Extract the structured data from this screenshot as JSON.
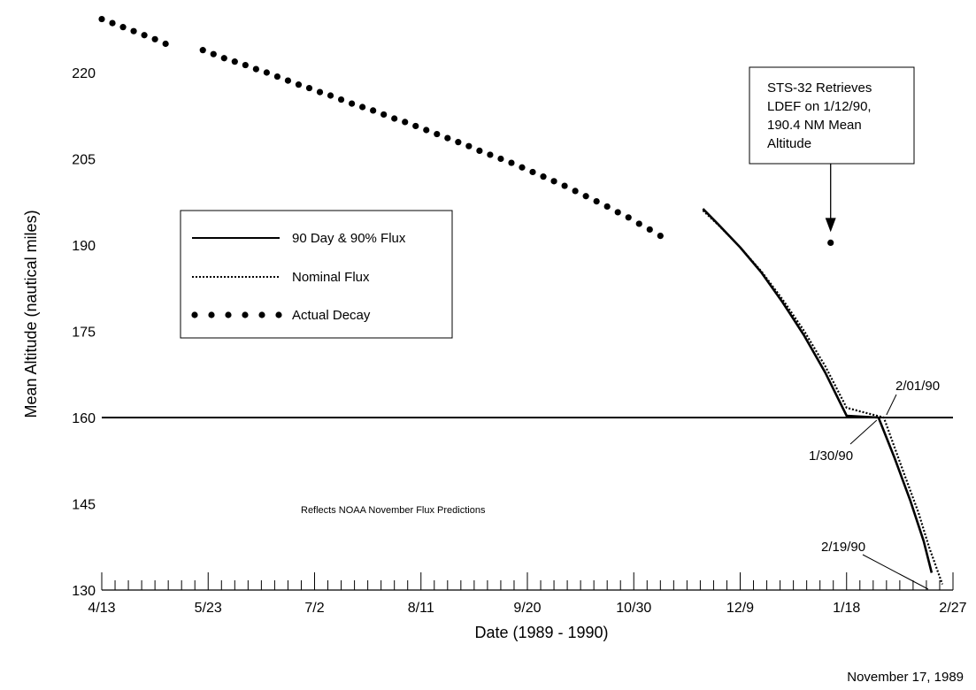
{
  "chart_data": {
    "type": "line",
    "title": "",
    "xlabel": "Date (1989 - 1990)",
    "ylabel": "Mean Altitude (nautical miles)",
    "footer": "November 17, 1989",
    "note": "Reflects NOAA November Flux Predictions",
    "xlim": [
      "1989-04-13",
      "1990-02-27"
    ],
    "ylim": [
      130,
      230
    ],
    "x_tick_labels": [
      "4/13",
      "5/23",
      "7/2",
      "8/11",
      "9/20",
      "10/30",
      "12/9",
      "1/18",
      "2/27"
    ],
    "x_tick_dates": [
      "1989-04-13",
      "1989-05-23",
      "1989-07-02",
      "1989-08-11",
      "1989-09-20",
      "1989-10-30",
      "1989-12-09",
      "1990-01-18",
      "1990-02-27"
    ],
    "minor_tick_step_days": 5,
    "y_ticks": [
      130,
      145,
      160,
      175,
      190,
      205,
      220
    ],
    "reference_line": {
      "y": 160
    },
    "legend": {
      "position": "left-center",
      "entries": [
        {
          "label": "90 Day & 90% Flux",
          "style": "solid"
        },
        {
          "label": "Nominal Flux",
          "style": "dotted-line"
        },
        {
          "label": "Actual Decay",
          "style": "dots"
        }
      ]
    },
    "series": [
      {
        "name": "Actual Decay",
        "style": "dots",
        "points": [
          [
            "1989-04-13",
            229.3
          ],
          [
            "1989-04-17",
            228.6
          ],
          [
            "1989-04-21",
            227.9
          ],
          [
            "1989-04-25",
            227.2
          ],
          [
            "1989-04-29",
            226.5
          ],
          [
            "1989-05-03",
            225.8
          ],
          [
            "1989-05-07",
            225.0
          ],
          [
            "1989-05-21",
            223.9
          ],
          [
            "1989-05-25",
            223.2
          ],
          [
            "1989-05-29",
            222.5
          ],
          [
            "1989-06-02",
            221.9
          ],
          [
            "1989-06-06",
            221.3
          ],
          [
            "1989-06-10",
            220.6
          ],
          [
            "1989-06-14",
            220.0
          ],
          [
            "1989-06-18",
            219.3
          ],
          [
            "1989-06-22",
            218.6
          ],
          [
            "1989-06-26",
            217.9
          ],
          [
            "1989-06-30",
            217.3
          ],
          [
            "1989-07-04",
            216.6
          ],
          [
            "1989-07-08",
            216.0
          ],
          [
            "1989-07-12",
            215.3
          ],
          [
            "1989-07-16",
            214.6
          ],
          [
            "1989-07-20",
            214.0
          ],
          [
            "1989-07-24",
            213.4
          ],
          [
            "1989-07-28",
            212.7
          ],
          [
            "1989-08-01",
            212.0
          ],
          [
            "1989-08-05",
            211.4
          ],
          [
            "1989-08-09",
            210.7
          ],
          [
            "1989-08-13",
            210.0
          ],
          [
            "1989-08-17",
            209.3
          ],
          [
            "1989-08-21",
            208.6
          ],
          [
            "1989-08-25",
            207.9
          ],
          [
            "1989-08-29",
            207.2
          ],
          [
            "1989-09-02",
            206.4
          ],
          [
            "1989-09-06",
            205.7
          ],
          [
            "1989-09-10",
            205.0
          ],
          [
            "1989-09-14",
            204.3
          ],
          [
            "1989-09-18",
            203.5
          ],
          [
            "1989-09-22",
            202.7
          ],
          [
            "1989-09-26",
            201.9
          ],
          [
            "1989-09-30",
            201.1
          ],
          [
            "1989-10-04",
            200.3
          ],
          [
            "1989-10-08",
            199.4
          ],
          [
            "1989-10-12",
            198.5
          ],
          [
            "1989-10-16",
            197.6
          ],
          [
            "1989-10-20",
            196.7
          ],
          [
            "1989-10-24",
            195.7
          ],
          [
            "1989-10-28",
            194.8
          ],
          [
            "1989-11-01",
            193.7
          ],
          [
            "1989-11-05",
            192.7
          ],
          [
            "1989-11-09",
            191.6
          ]
        ]
      },
      {
        "name": "90 Day & 90% Flux",
        "style": "solid",
        "points": [
          [
            "1989-11-25",
            196.3
          ],
          [
            "1989-12-01",
            193.5
          ],
          [
            "1989-12-09",
            189.6
          ],
          [
            "1989-12-17",
            185.2
          ],
          [
            "1989-12-25",
            180.0
          ],
          [
            "1990-01-02",
            174.3
          ],
          [
            "1990-01-10",
            167.8
          ],
          [
            "1990-01-18",
            160.3
          ],
          [
            "1990-01-30",
            160.0
          ],
          [
            "1990-02-05",
            153.0
          ],
          [
            "1990-02-11",
            145.5
          ],
          [
            "1990-02-16",
            138.5
          ],
          [
            "1990-02-19",
            133.0
          ]
        ]
      },
      {
        "name": "Nominal Flux",
        "style": "dotted-line",
        "points": [
          [
            "1989-11-25",
            196.0
          ],
          [
            "1989-12-01",
            193.4
          ],
          [
            "1989-12-09",
            189.6
          ],
          [
            "1989-12-17",
            185.4
          ],
          [
            "1989-12-25",
            180.5
          ],
          [
            "1990-01-02",
            175.1
          ],
          [
            "1990-01-10",
            168.9
          ],
          [
            "1990-01-18",
            161.7
          ],
          [
            "1990-02-01",
            160.0
          ],
          [
            "1990-02-08",
            151.0
          ],
          [
            "1990-02-14",
            143.5
          ],
          [
            "1990-02-18",
            137.5
          ],
          [
            "1990-02-23",
            131.0
          ]
        ]
      }
    ],
    "annotations": [
      {
        "text": "STS-32 Retrieves LDEF on 1/12/90, 190.4 NM Mean Altitude",
        "lines": [
          "STS-32 Retrieves",
          "LDEF on 1/12/90,",
          "190.4 NM Mean",
          "Altitude"
        ],
        "point": [
          "1990-01-12",
          190.4
        ]
      },
      {
        "text": "2/01/90",
        "target": [
          "1990-02-01",
          160
        ]
      },
      {
        "text": "1/30/90",
        "target": [
          "1990-01-30",
          160
        ]
      },
      {
        "text": "2/19/90",
        "target": [
          "1990-02-19",
          130
        ]
      }
    ]
  }
}
